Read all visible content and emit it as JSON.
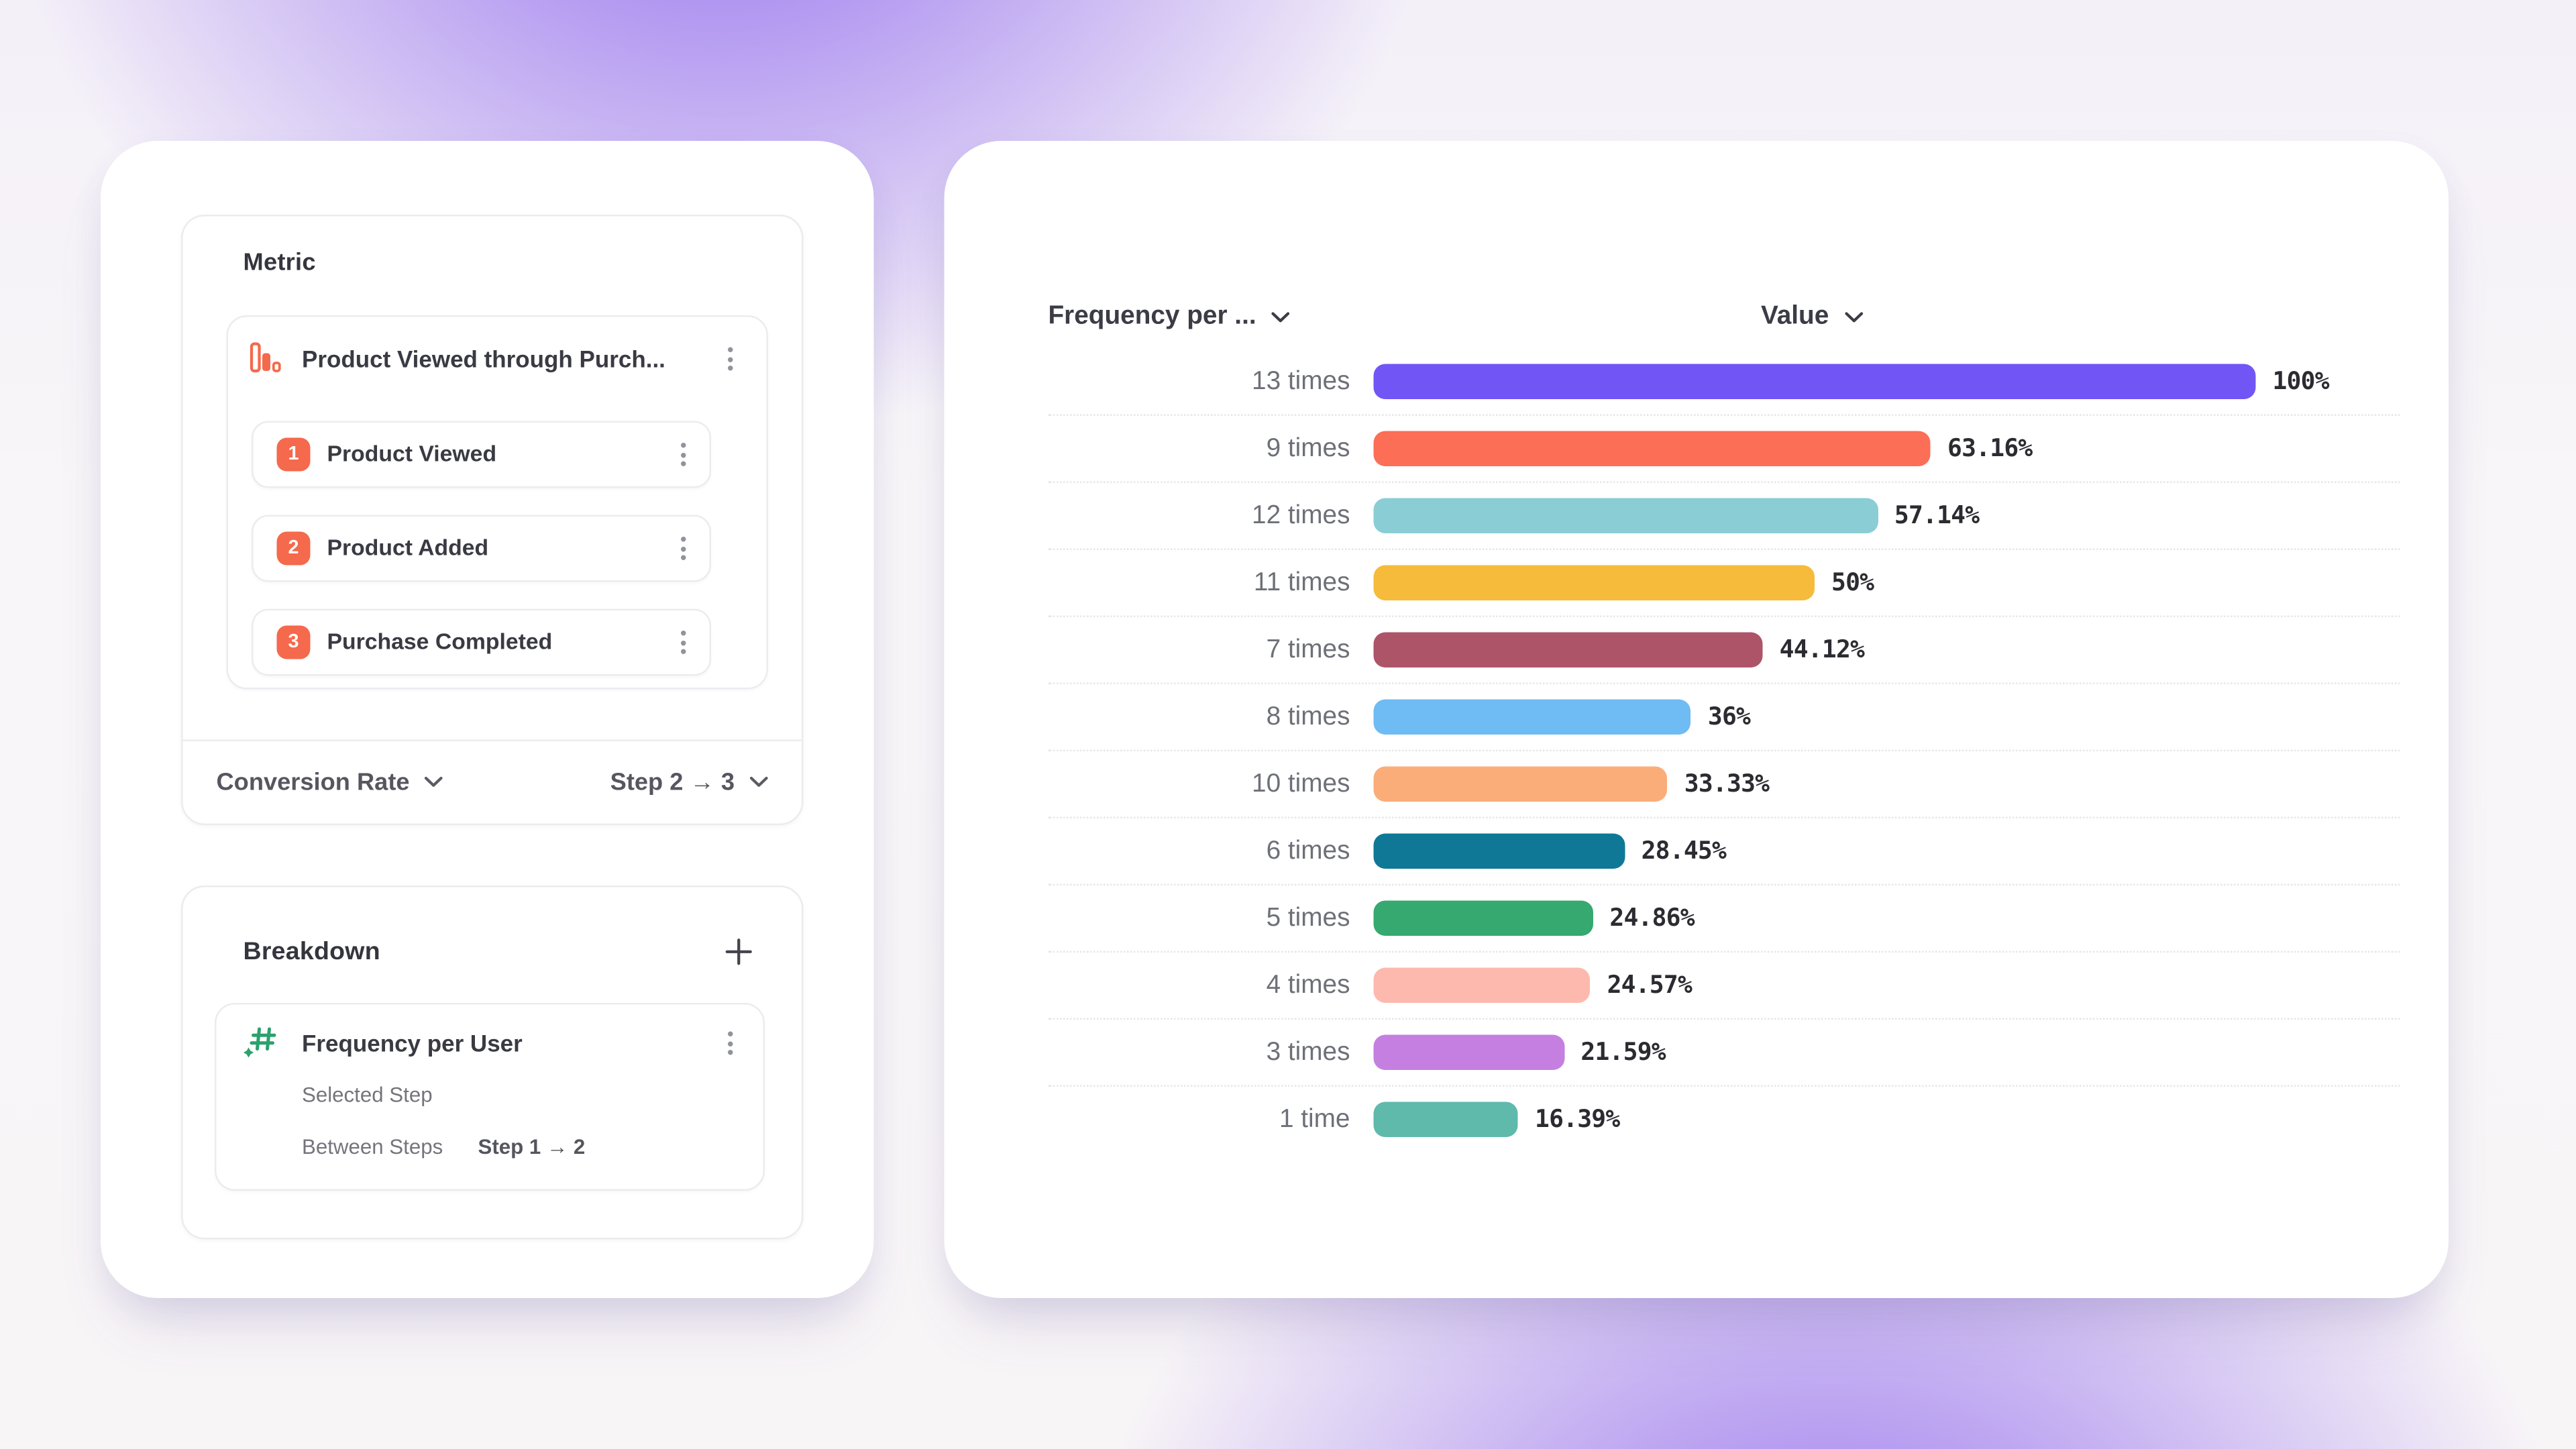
{
  "left_panel": {
    "metric": {
      "title": "Metric",
      "funnel": {
        "title": "Product Viewed through Purch...",
        "steps": [
          {
            "num": "1",
            "label": "Product Viewed"
          },
          {
            "num": "2",
            "label": "Product Added"
          },
          {
            "num": "3",
            "label": "Purchase Completed"
          }
        ],
        "step_badge_color": "#F5694C",
        "icon_color": "#F5694C"
      },
      "footer": {
        "measure_label": "Conversion Rate",
        "step_range_label": "Step 2 → 3"
      }
    },
    "breakdown": {
      "title": "Breakdown",
      "item": {
        "title": "Frequency per User",
        "icon_color": "#2BA16E",
        "row1_label": "Selected Step",
        "row2_label": "Between Steps",
        "row2_value": "Step 1 → 2"
      }
    }
  },
  "chart": {
    "col1_header": "Frequency per ...",
    "col2_header": "Value"
  },
  "chart_data": {
    "type": "bar",
    "orientation": "horizontal",
    "title": "Frequency per ... vs Value",
    "xlabel": "Value",
    "ylabel": "Frequency per ...",
    "xlim": [
      0,
      100
    ],
    "grid": "dotted-row-separators",
    "categories": [
      "13 times",
      "9 times",
      "12 times",
      "11 times",
      "7 times",
      "8 times",
      "10 times",
      "6 times",
      "5 times",
      "4 times",
      "3 times",
      "1 time"
    ],
    "values": [
      100,
      63.16,
      57.14,
      50,
      44.12,
      36,
      33.33,
      28.45,
      24.86,
      24.57,
      21.59,
      16.39
    ],
    "value_labels": [
      "100%",
      "63.16%",
      "57.14%",
      "50%",
      "44.12%",
      "36%",
      "33.33%",
      "28.45%",
      "24.86%",
      "24.57%",
      "21.59%",
      "16.39%"
    ],
    "colors": [
      "#7255F5",
      "#FC6E55",
      "#8BCDD4",
      "#F6BB3B",
      "#AD5468",
      "#6FBBF4",
      "#FBAD79",
      "#0F7897",
      "#35A96F",
      "#FDB9AE",
      "#C47FE0",
      "#5FBAAB"
    ]
  }
}
